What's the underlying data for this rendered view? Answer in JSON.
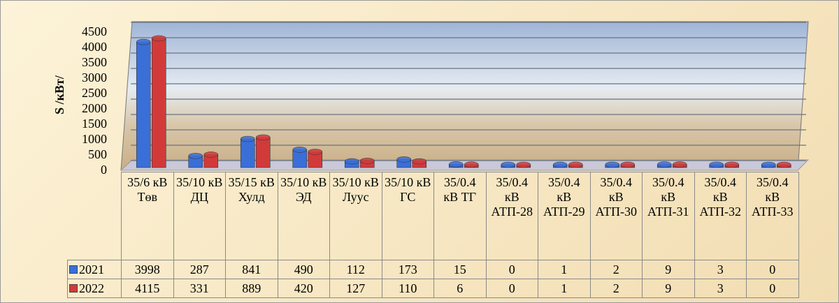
{
  "chart_data": {
    "type": "bar",
    "y_label": "S /кВт/",
    "categories": [
      "35/6 кВ Төв",
      "35/10 кВ ДЦ",
      "35/15 кВ Хулд",
      "35/10 кВ ЭД",
      "35/10 кВ Луус",
      "35/10 кВ ГС",
      "35/0.4 кВ ТГ",
      "35/0.4 кВ АТП-28",
      "35/0.4 кВ АТП-29",
      "35/0.4 кВ АТП-30",
      "35/0.4 кВ АТП-31",
      "35/0.4 кВ АТП-32",
      "35/0.4 кВ АТП-33"
    ],
    "series": [
      {
        "name": "2021",
        "color": "#3a6fd8",
        "values": [
          3998,
          287,
          841,
          490,
          112,
          173,
          15,
          0,
          1,
          2,
          9,
          3,
          0
        ]
      },
      {
        "name": "2022",
        "color": "#d23a3a",
        "values": [
          4115,
          331,
          889,
          420,
          127,
          110,
          6,
          0,
          1,
          2,
          9,
          3,
          0
        ]
      }
    ],
    "ylim": [
      0,
      4500
    ],
    "yticks": [
      0,
      500,
      1000,
      1500,
      2000,
      2500,
      3000,
      3500,
      4000,
      4500
    ],
    "grid": true
  }
}
